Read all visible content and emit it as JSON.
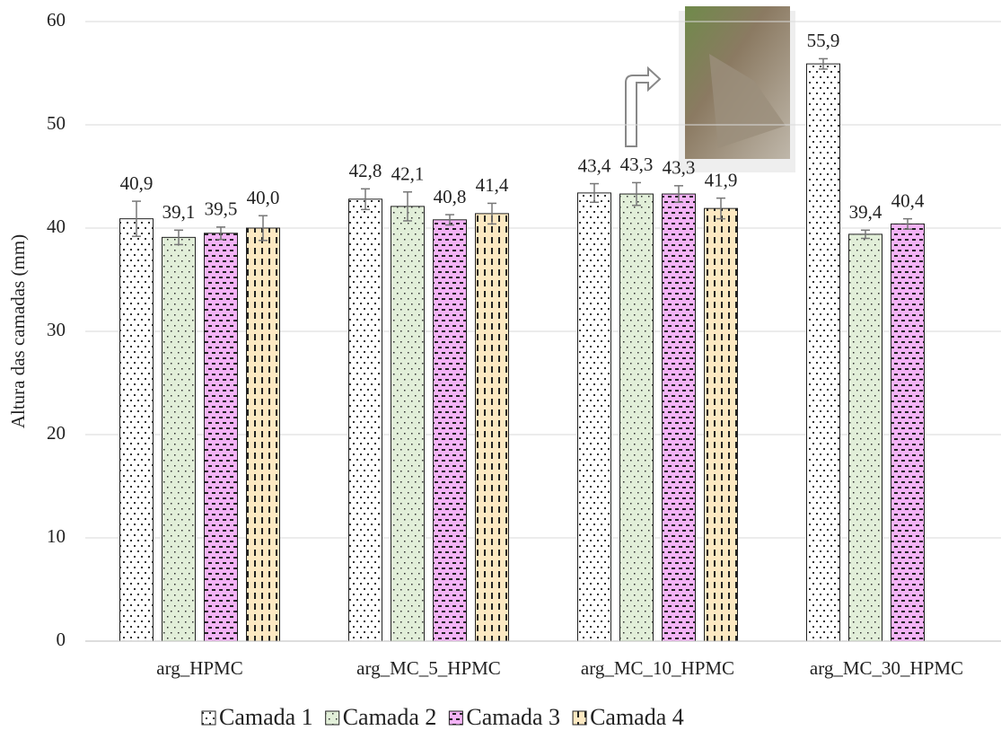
{
  "chart_data": {
    "type": "bar",
    "y_label": "Altura das camadas (mm)",
    "categories": [
      "arg_HPMC",
      "arg_MC_5_HPMC",
      "arg_MC_10_HPMC",
      "arg_MC_30_HPMC"
    ],
    "series": [
      {
        "name": "Camada 1",
        "color": "#ffffff",
        "values": [
          40.9,
          42.8,
          43.4,
          55.9
        ],
        "value_labels": [
          "40,9",
          "42,8",
          "43,4",
          "55,9"
        ],
        "errors": [
          1.7,
          1.0,
          0.9,
          0.5
        ]
      },
      {
        "name": "Camada 2",
        "color": "#e2efd9",
        "values": [
          39.1,
          42.1,
          43.3,
          39.4
        ],
        "value_labels": [
          "39,1",
          "42,1",
          "43,3",
          "39,4"
        ],
        "errors": [
          0.7,
          1.4,
          1.1,
          0.4
        ]
      },
      {
        "name": "Camada 3",
        "color": "#f4b3f7",
        "values": [
          39.5,
          40.8,
          43.3,
          40.4
        ],
        "value_labels": [
          "39,5",
          "40,8",
          "43,3",
          "40,4"
        ],
        "errors": [
          0.6,
          0.5,
          0.8,
          0.5
        ]
      },
      {
        "name": "Camada 4",
        "color": "#fde9c2",
        "values": [
          40.0,
          41.4,
          41.9,
          null
        ],
        "value_labels": [
          "40,0",
          "41,4",
          "41,9",
          null
        ],
        "errors": [
          1.2,
          1.0,
          1.0,
          null
        ]
      }
    ],
    "ylim": [
      0,
      60
    ],
    "yticks": [
      0,
      10,
      20,
      30,
      40,
      50,
      60
    ],
    "grid": true,
    "legend": "bottom"
  }
}
